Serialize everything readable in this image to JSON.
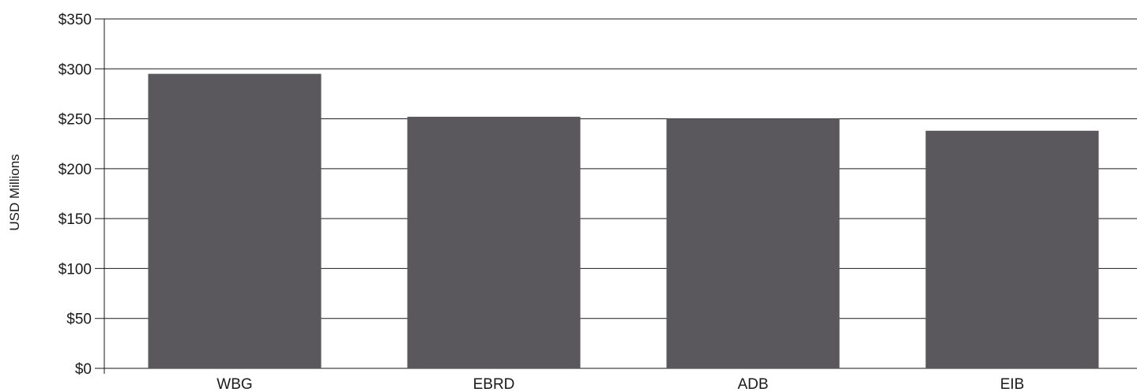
{
  "colors": {
    "bar": "#5a585d",
    "grid": "#1a1a1a",
    "text": "#1a1a1a",
    "background": "#ffffff"
  },
  "chart_data": {
    "type": "bar",
    "title": "",
    "xlabel": "",
    "ylabel": "USD Millions",
    "categories": [
      "WBG",
      "EBRD",
      "ADB",
      "EIB"
    ],
    "values": [
      295,
      252,
      250,
      238
    ],
    "ylim": [
      0,
      350
    ],
    "yticks": [
      0,
      50,
      100,
      150,
      200,
      250,
      300,
      350
    ],
    "ytick_labels": [
      "$0",
      "$50",
      "$100",
      "$150",
      "$200",
      "$250",
      "$300",
      "$350"
    ],
    "grid": true,
    "legend": "none"
  }
}
